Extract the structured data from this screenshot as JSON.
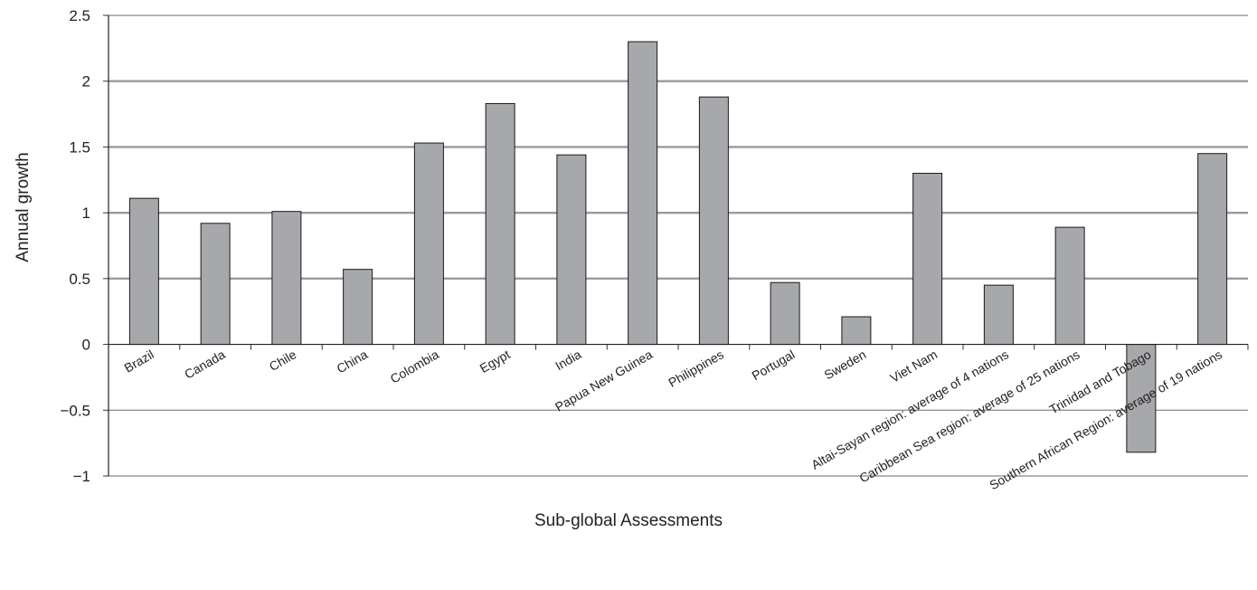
{
  "chart_data": {
    "type": "bar",
    "title": "",
    "xlabel": "Sub-global Assessments",
    "ylabel": "Annual growth",
    "ylim": [
      -1,
      2.5
    ],
    "yticks": [
      2.5,
      2,
      1.5,
      1,
      0.5,
      0,
      -0.5,
      -1
    ],
    "ytick_labels": [
      "2.5",
      "2",
      "1.5",
      "1",
      "0.5",
      "0",
      "−0.5",
      "−1"
    ],
    "grid": true,
    "bar_color": "#a7a8ab",
    "categories": [
      "Brazil",
      "Canada",
      "Chile",
      "China",
      "Colombia",
      "Egypt",
      "India",
      "Papua New Guinea",
      "Philippines",
      "Portugal",
      "Sweden",
      "Viet Nam",
      "Altai-Sayan region: average of 4 nations",
      "Caribbean Sea region: average of 25 nations",
      "Trinidad and Tobago",
      "Southern African Region: average of 19 nations"
    ],
    "values": [
      1.11,
      0.92,
      1.01,
      0.57,
      1.53,
      1.83,
      1.44,
      2.3,
      1.88,
      0.47,
      0.21,
      1.3,
      0.45,
      0.89,
      -0.82,
      1.45
    ]
  }
}
